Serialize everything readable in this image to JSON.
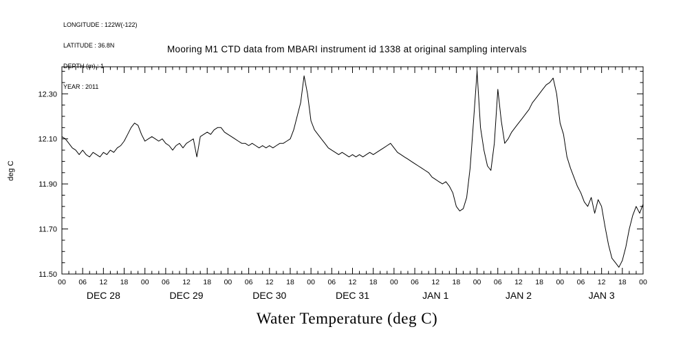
{
  "header": {
    "metadata": {
      "longitude": "LONGITUDE : 122W(-122)",
      "latitude": "LATITUDE : 36.8N",
      "depth": "DEPTH (m) : 1",
      "year": "YEAR : 2011"
    },
    "title": "Mooring M1 CTD data from MBARI instrument id 1338 at original sampling intervals"
  },
  "chart_data": {
    "type": "line",
    "title": "Mooring M1 CTD data from MBARI instrument id 1338 at original sampling intervals",
    "xlabel": "Water Temperature (deg C)",
    "ylabel": "deg C",
    "ylim": [
      11.5,
      12.42
    ],
    "y_major_ticks": [
      11.5,
      11.7,
      11.9,
      12.1,
      12.3
    ],
    "y_minor_step": 0.05,
    "x_hours_span": 168,
    "x_major_tick_every_hours": 6,
    "x_minor_tick_every_hours": 2,
    "hour_tick_labels": [
      "00",
      "06",
      "12",
      "18"
    ],
    "day_labels": [
      "DEC 28",
      "DEC 29",
      "DEC 30",
      "DEC 31",
      "JAN 1",
      "JAN 2",
      "JAN 3"
    ],
    "line_color": "#000000",
    "grid": false,
    "legend": false,
    "series": [
      {
        "name": "water_temperature_degC",
        "x_start_hour": 0,
        "x_step_hours": 1,
        "values": [
          12.11,
          12.1,
          12.08,
          12.06,
          12.05,
          12.03,
          12.05,
          12.03,
          12.02,
          12.04,
          12.03,
          12.02,
          12.04,
          12.03,
          12.05,
          12.04,
          12.06,
          12.07,
          12.09,
          12.12,
          12.15,
          12.17,
          12.16,
          12.12,
          12.09,
          12.1,
          12.11,
          12.1,
          12.09,
          12.1,
          12.08,
          12.07,
          12.05,
          12.07,
          12.08,
          12.06,
          12.08,
          12.09,
          12.1,
          12.02,
          12.11,
          12.12,
          12.13,
          12.12,
          12.14,
          12.15,
          12.15,
          12.13,
          12.12,
          12.11,
          12.1,
          12.09,
          12.08,
          12.08,
          12.07,
          12.08,
          12.07,
          12.06,
          12.07,
          12.06,
          12.07,
          12.06,
          12.07,
          12.08,
          12.08,
          12.09,
          12.1,
          12.14,
          12.2,
          12.26,
          12.38,
          12.3,
          12.18,
          12.14,
          12.12,
          12.1,
          12.08,
          12.06,
          12.05,
          12.04,
          12.03,
          12.04,
          12.03,
          12.02,
          12.03,
          12.02,
          12.03,
          12.02,
          12.03,
          12.04,
          12.03,
          12.04,
          12.05,
          12.06,
          12.07,
          12.08,
          12.06,
          12.04,
          12.03,
          12.02,
          12.01,
          12.0,
          11.99,
          11.98,
          11.97,
          11.96,
          11.95,
          11.93,
          11.92,
          11.91,
          11.9,
          11.91,
          11.89,
          11.86,
          11.8,
          11.78,
          11.79,
          11.84,
          11.97,
          12.18,
          12.4,
          12.15,
          12.05,
          11.98,
          11.96,
          12.08,
          12.32,
          12.18,
          12.08,
          12.1,
          12.13,
          12.15,
          12.17,
          12.19,
          12.21,
          12.23,
          12.26,
          12.28,
          12.3,
          12.32,
          12.34,
          12.35,
          12.37,
          12.3,
          12.17,
          12.12,
          12.02,
          11.97,
          11.93,
          11.89,
          11.86,
          11.82,
          11.8,
          11.84,
          11.77,
          11.83,
          11.8,
          11.71,
          11.63,
          11.57,
          11.55,
          11.53,
          11.56,
          11.62,
          11.7,
          11.76,
          11.8,
          11.77,
          11.81
        ]
      }
    ]
  }
}
